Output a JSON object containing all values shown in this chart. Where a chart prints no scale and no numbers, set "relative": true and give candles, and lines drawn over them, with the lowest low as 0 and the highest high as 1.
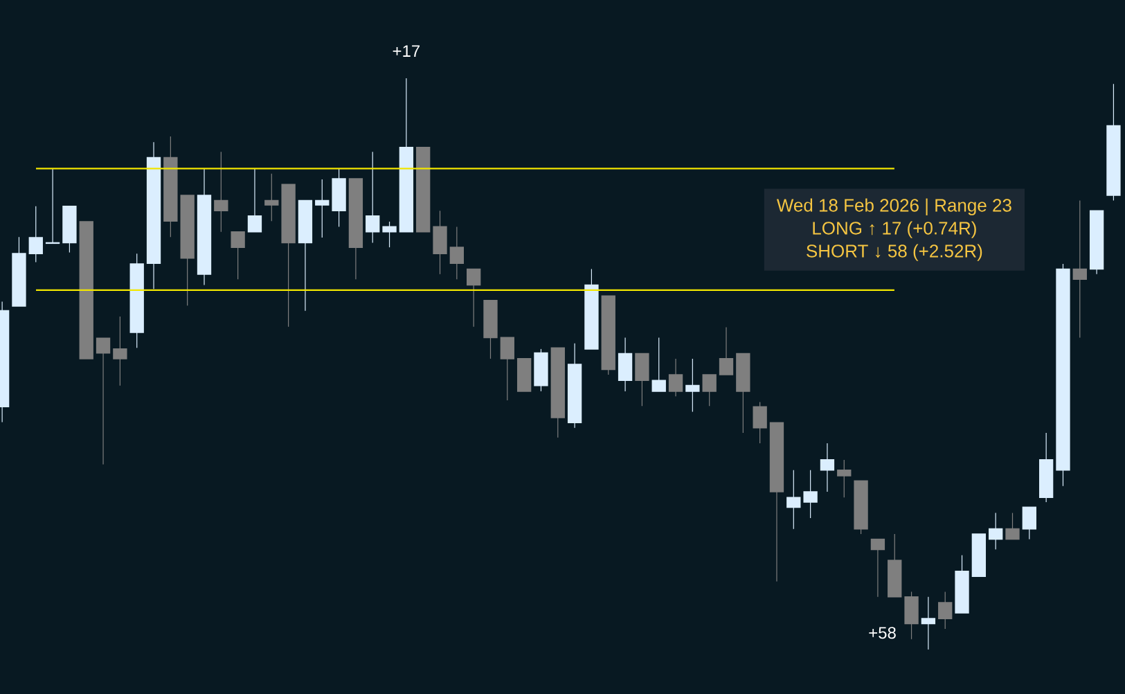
{
  "chart_data": {
    "type": "candlestick",
    "relative": true,
    "categories": [
      null,
      null,
      null,
      null,
      null,
      null,
      null,
      null,
      null,
      null,
      null,
      null,
      null,
      null,
      null,
      null,
      null,
      null,
      null,
      null,
      null,
      null,
      null,
      null,
      null,
      null,
      null,
      null,
      null,
      null,
      null,
      null,
      null,
      null,
      null,
      null,
      null,
      null,
      null,
      null,
      null,
      null,
      null,
      null,
      null,
      null,
      null,
      null,
      null,
      null,
      null,
      null,
      null,
      null,
      null,
      null,
      null,
      null,
      null,
      null,
      null,
      null,
      null,
      null,
      null,
      null,
      null
    ],
    "ohlc": [
      [
        0.425,
        0.609,
        0.398,
        0.593
      ],
      [
        0.601,
        0.722,
        0.601,
        0.693
      ],
      [
        0.693,
        0.776,
        0.678,
        0.721
      ],
      [
        0.711,
        0.842,
        0.711,
        0.712
      ],
      [
        0.712,
        0.776,
        0.695,
        0.776
      ],
      [
        0.749,
        0.749,
        0.509,
        0.509
      ],
      [
        0.545,
        0.545,
        0.324,
        0.519
      ],
      [
        0.526,
        0.583,
        0.462,
        0.509
      ],
      [
        0.555,
        0.693,
        0.528,
        0.675
      ],
      [
        0.676,
        0.888,
        0.631,
        0.861
      ],
      [
        0.861,
        0.898,
        0.722,
        0.75
      ],
      [
        0.795,
        0.795,
        0.602,
        0.685
      ],
      [
        0.657,
        0.842,
        0.638,
        0.795
      ],
      [
        0.786,
        0.871,
        0.731,
        0.768
      ],
      [
        0.731,
        0.731,
        0.648,
        0.704
      ],
      [
        0.731,
        0.842,
        0.731,
        0.759
      ],
      [
        0.786,
        0.833,
        0.75,
        0.778
      ],
      [
        0.814,
        0.814,
        0.565,
        0.712
      ],
      [
        0.712,
        0.786,
        0.593,
        0.786
      ],
      [
        0.778,
        0.823,
        0.721,
        0.786
      ],
      [
        0.768,
        0.842,
        0.74,
        0.824
      ],
      [
        0.824,
        0.824,
        0.648,
        0.704
      ],
      [
        0.731,
        0.871,
        0.712,
        0.759
      ],
      [
        0.731,
        0.749,
        0.704,
        0.74
      ],
      [
        0.731,
        1.0,
        0.731,
        0.879
      ],
      [
        0.879,
        0.879,
        0.731,
        0.731
      ],
      [
        0.74,
        0.768,
        0.657,
        0.693
      ],
      [
        0.704,
        0.74,
        0.648,
        0.676
      ],
      [
        0.666,
        0.666,
        0.565,
        0.638
      ],
      [
        0.611,
        0.611,
        0.509,
        0.546
      ],
      [
        0.546,
        0.546,
        0.436,
        0.509
      ],
      [
        0.509,
        0.509,
        0.452,
        0.452
      ],
      [
        0.462,
        0.526,
        0.452,
        0.519
      ],
      [
        0.528,
        0.528,
        0.371,
        0.406
      ],
      [
        0.397,
        0.536,
        0.388,
        0.499
      ],
      [
        0.526,
        0.666,
        0.526,
        0.638
      ],
      [
        0.619,
        0.619,
        0.481,
        0.49
      ],
      [
        0.471,
        0.546,
        0.452,
        0.518
      ],
      [
        0.518,
        0.518,
        0.426,
        0.471
      ],
      [
        0.452,
        0.546,
        0.452,
        0.471
      ],
      [
        0.481,
        0.509,
        0.443,
        0.452
      ],
      [
        0.452,
        0.509,
        0.416,
        0.462
      ],
      [
        0.481,
        0.481,
        0.426,
        0.452
      ],
      [
        0.509,
        0.564,
        0.481,
        0.481
      ],
      [
        0.518,
        0.518,
        0.379,
        0.452
      ],
      [
        0.425,
        0.433,
        0.361,
        0.388
      ],
      [
        0.397,
        0.397,
        0.119,
        0.276
      ],
      [
        0.249,
        0.314,
        0.211,
        0.266
      ],
      [
        0.258,
        0.314,
        0.23,
        0.276
      ],
      [
        0.314,
        0.361,
        0.276,
        0.332
      ],
      [
        0.314,
        0.332,
        0.266,
        0.304
      ],
      [
        0.295,
        0.295,
        0.202,
        0.211
      ],
      [
        0.193,
        0.193,
        0.092,
        0.175
      ],
      [
        0.156,
        0.202,
        0.092,
        0.092
      ],
      [
        0.092,
        0.101,
        0.018,
        0.045
      ],
      [
        0.045,
        0.092,
        0,
        0.054
      ],
      [
        0.082,
        0.101,
        0.036,
        0.054
      ],
      [
        0.064,
        0.165,
        0.064,
        0.137
      ],
      [
        0.128,
        0.202,
        0.128,
        0.202
      ],
      [
        0.193,
        0.239,
        0.175,
        0.211
      ],
      [
        0.211,
        0.239,
        0.193,
        0.193
      ],
      [
        0.211,
        0.249,
        0.193,
        0.249
      ],
      [
        0.266,
        0.379,
        0.258,
        0.332
      ],
      [
        0.314,
        0.675,
        0.286,
        0.666
      ],
      [
        0.666,
        0.786,
        0.546,
        0.648
      ],
      [
        0.666,
        0.768,
        0.657,
        0.768
      ],
      [
        0.795,
        0.99,
        0.786,
        0.917
      ]
    ],
    "colors": [
      "#dbeefe",
      "#dbeefe",
      "#dbeefe",
      "#dbeefe",
      "#dbeefe",
      "#7f7f7f",
      "#7f7f7f",
      "#7f7f7f",
      "#dbeefe",
      "#dbeefe",
      "#7f7f7f",
      "#7f7f7f",
      "#dbeefe",
      "#7f7f7f",
      "#7f7f7f",
      "#dbeefe",
      "#7f7f7f",
      "#7f7f7f",
      "#dbeefe",
      "#dbeefe",
      "#dbeefe",
      "#7f7f7f",
      "#dbeefe",
      "#dbeefe",
      "#dbeefe",
      "#7f7f7f",
      "#7f7f7f",
      "#7f7f7f",
      "#7f7f7f",
      "#7f7f7f",
      "#7f7f7f",
      "#7f7f7f",
      "#dbeefe",
      "#7f7f7f",
      "#dbeefe",
      "#dbeefe",
      "#7f7f7f",
      "#dbeefe",
      "#7f7f7f",
      "#dbeefe",
      "#7f7f7f",
      "#dbeefe",
      "#7f7f7f",
      "#7f7f7f",
      "#7f7f7f",
      "#7f7f7f",
      "#7f7f7f",
      "#dbeefe",
      "#dbeefe",
      "#dbeefe",
      "#7f7f7f",
      "#7f7f7f",
      "#7f7f7f",
      "#7f7f7f",
      "#7f7f7f",
      "#dbeefe",
      "#7f7f7f",
      "#dbeefe",
      "#dbeefe",
      "#dbeefe",
      "#7f7f7f",
      "#dbeefe",
      "#dbeefe",
      "#dbeefe",
      "#7f7f7f",
      "#dbeefe",
      "#dbeefe"
    ],
    "ref_lines": [
      {
        "axis": "y",
        "value": 0.842,
        "color": "#f2e600"
      },
      {
        "axis": "y",
        "value": 0.629,
        "color": "#f2e600"
      }
    ],
    "annotations": [
      {
        "text": "+17",
        "y": 1.0
      },
      "+58",
      "Wed 18 Feb 2026 | Range 23",
      "LONG ↑ 17 (+0.74R)",
      "SHORT ↓ 58 (+2.52R)"
    ]
  }
}
